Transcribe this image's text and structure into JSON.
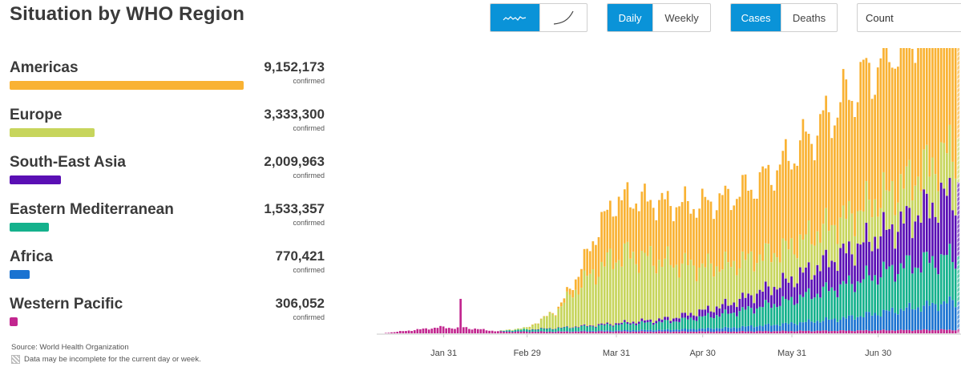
{
  "header": {
    "title": "Situation by WHO Region",
    "trend_icons": [
      "linear-trend-icon",
      "cumulative-trend-icon"
    ],
    "period_buttons": [
      "Daily",
      "Weekly"
    ],
    "metric_buttons": [
      "Cases",
      "Deaths"
    ],
    "scale_select": "Count"
  },
  "regions": [
    {
      "name": "Americas",
      "value": "9,152,173",
      "sub": "confirmed",
      "color": "#f9b233",
      "total": 9152173
    },
    {
      "name": "Europe",
      "value": "3,333,300",
      "sub": "confirmed",
      "color": "#c7d55c",
      "total": 3333300
    },
    {
      "name": "South-East Asia",
      "value": "2,009,963",
      "sub": "confirmed",
      "color": "#5a0fb4",
      "total": 2009963
    },
    {
      "name": "Eastern Mediterranean",
      "value": "1,533,357",
      "sub": "confirmed",
      "color": "#14b18c",
      "total": 1533357
    },
    {
      "name": "Africa",
      "value": "770,421",
      "sub": "confirmed",
      "color": "#1a73d1",
      "total": 770421
    },
    {
      "name": "Western Pacific",
      "value": "306,052",
      "sub": "confirmed",
      "color": "#c2268f",
      "total": 306052
    }
  ],
  "footer": {
    "source": "Source:  World Health Organization",
    "note": "Data may be incomplete for the current day or week."
  },
  "chart_data": {
    "type": "bar",
    "stacked": true,
    "x_start": "2020-01-11",
    "x_ticks": [
      "Jan 31",
      "Feb 29",
      "Mar 31",
      "Apr 30",
      "May 31",
      "Jun 30"
    ],
    "y_axis_visible": false,
    "grid": false,
    "last_day_incomplete": true,
    "series_order": [
      "Western Pacific",
      "Africa",
      "Eastern Mediterranean",
      "South-East Asia",
      "Europe",
      "Americas"
    ],
    "control_points": {
      "Western Pacific": [
        [
          1,
          200
        ],
        [
          10,
          1500
        ],
        [
          20,
          3000
        ],
        [
          26,
          2500
        ],
        [
          27,
          15000
        ],
        [
          28,
          3000
        ],
        [
          30,
          2500
        ],
        [
          40,
          1000
        ],
        [
          60,
          800
        ],
        [
          80,
          900
        ],
        [
          120,
          900
        ],
        [
          150,
          1200
        ],
        [
          160,
          1300
        ],
        [
          200,
          1800
        ]
      ],
      "Africa": [
        [
          1,
          0
        ],
        [
          40,
          0
        ],
        [
          50,
          50
        ],
        [
          60,
          150
        ],
        [
          80,
          500
        ],
        [
          100,
          900
        ],
        [
          120,
          1800
        ],
        [
          140,
          3500
        ],
        [
          160,
          6000
        ],
        [
          180,
          10000
        ],
        [
          200,
          14000
        ]
      ],
      "Eastern Mediterranean": [
        [
          1,
          0
        ],
        [
          40,
          0
        ],
        [
          45,
          700
        ],
        [
          60,
          1500
        ],
        [
          80,
          2800
        ],
        [
          100,
          4000
        ],
        [
          120,
          7000
        ],
        [
          140,
          11000
        ],
        [
          160,
          16000
        ],
        [
          180,
          21000
        ],
        [
          200,
          22000
        ]
      ],
      "South-East Asia": [
        [
          1,
          0
        ],
        [
          50,
          0
        ],
        [
          60,
          100
        ],
        [
          80,
          600
        ],
        [
          100,
          1500
        ],
        [
          110,
          2800
        ],
        [
          120,
          4500
        ],
        [
          140,
          9500
        ],
        [
          160,
          15500
        ],
        [
          180,
          21000
        ],
        [
          200,
          32000
        ]
      ],
      "Europe": [
        [
          1,
          0
        ],
        [
          40,
          0
        ],
        [
          50,
          800
        ],
        [
          60,
          8000
        ],
        [
          70,
          22000
        ],
        [
          80,
          32000
        ],
        [
          85,
          33000
        ],
        [
          100,
          27000
        ],
        [
          110,
          22000
        ],
        [
          120,
          19000
        ],
        [
          140,
          16000
        ],
        [
          160,
          17000
        ],
        [
          180,
          18000
        ],
        [
          200,
          22000
        ]
      ],
      "Americas": [
        [
          1,
          0
        ],
        [
          50,
          0
        ],
        [
          55,
          50
        ],
        [
          60,
          500
        ],
        [
          65,
          3000
        ],
        [
          70,
          10000
        ],
        [
          75,
          20000
        ],
        [
          80,
          27000
        ],
        [
          90,
          28000
        ],
        [
          100,
          29000
        ],
        [
          110,
          30000
        ],
        [
          120,
          33000
        ],
        [
          130,
          36000
        ],
        [
          140,
          43000
        ],
        [
          150,
          50000
        ],
        [
          160,
          58000
        ],
        [
          170,
          65000
        ],
        [
          180,
          72000
        ],
        [
          190,
          80000
        ],
        [
          200,
          102000
        ]
      ]
    }
  }
}
